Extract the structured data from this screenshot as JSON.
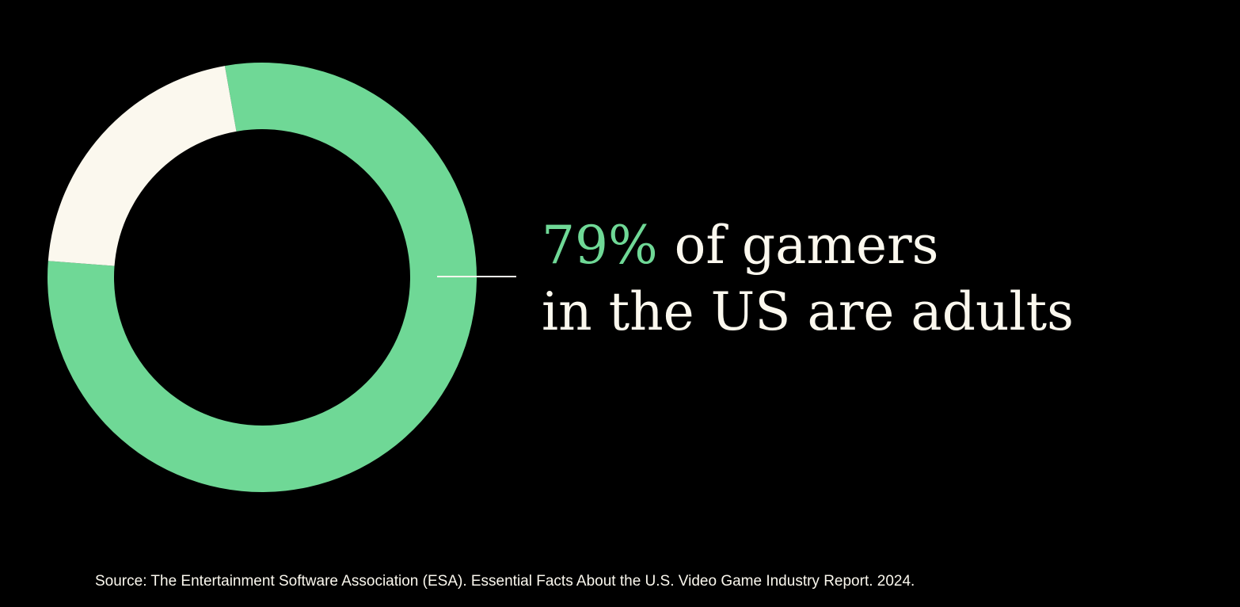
{
  "chart_data": {
    "type": "pie",
    "variant": "donut",
    "series": [
      {
        "value": 79,
        "color": "#6fd896"
      },
      {
        "value": 21,
        "color": "#fbf8ee"
      }
    ]
  },
  "headline": {
    "percent": "79%",
    "line1_rest": " of gamers",
    "line2": "in the US are adults"
  },
  "source": "Source: The Entertainment Software Association (ESA). Essential Facts About the U.S. Video Game Industry Report. 2024.",
  "colors": {
    "background": "#000000",
    "accent": "#6fd896",
    "text": "#fbf8ee"
  }
}
